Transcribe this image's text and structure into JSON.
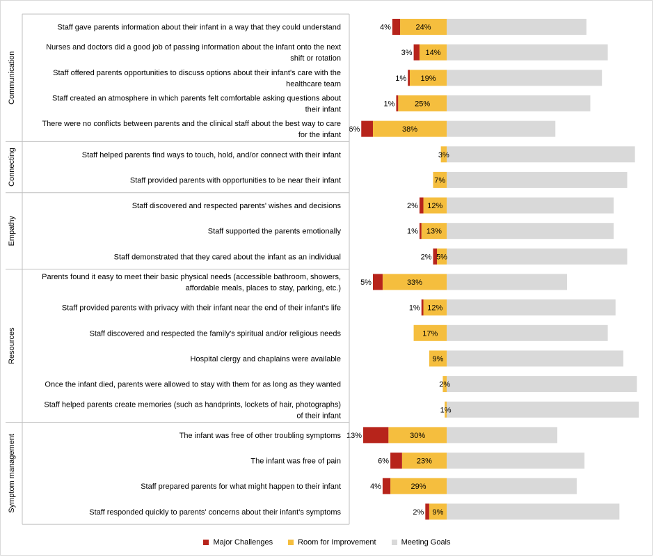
{
  "colors": {
    "major": "#b7241b",
    "room": "#f5be3e",
    "meeting": "#d9d9d9",
    "grid": "#bfbfbf"
  },
  "legend": {
    "major": "Major Challenges",
    "room": "Room for Improvement",
    "meeting": "Meeting Goals"
  },
  "chart_data": {
    "type": "bar",
    "orientation": "horizontal-diverging-stacked",
    "legend_position": "bottom",
    "grid": false,
    "groups": [
      {
        "name": "Communication",
        "items": [
          {
            "label": [
              "Staff gave parents information about their infant in a way that they could understand"
            ],
            "major": 4,
            "room": 24,
            "meeting": 72
          },
          {
            "label": [
              "Nurses and doctors did a good job of passing information about the infant onto the next",
              "shift or rotation"
            ],
            "major": 3,
            "room": 14,
            "meeting": 83
          },
          {
            "label": [
              "Staff offered parents opportunities to discuss options about their infant's care with the",
              "healthcare team"
            ],
            "major": 1,
            "room": 19,
            "meeting": 80
          },
          {
            "label": [
              "Staff created an atmosphere in which parents felt comfortable asking questions about",
              "their infant"
            ],
            "major": 1,
            "room": 25,
            "meeting": 74
          },
          {
            "label": [
              "There were no conflicts between parents and the clinical staff about the best way to care",
              "for the infant"
            ],
            "major": 6,
            "room": 38,
            "meeting": 56
          }
        ]
      },
      {
        "name": "Connecting",
        "items": [
          {
            "label": [
              "Staff helped parents find ways to touch, hold, and/or connect with their infant"
            ],
            "major": 0,
            "room": 3,
            "meeting": 97
          },
          {
            "label": [
              "Staff provided parents with opportunities to be near their infant"
            ],
            "major": 0,
            "room": 7,
            "meeting": 93
          }
        ]
      },
      {
        "name": "Empathy",
        "items": [
          {
            "label": [
              "Staff discovered and respected parents' wishes and decisions"
            ],
            "major": 2,
            "room": 12,
            "meeting": 86
          },
          {
            "label": [
              "Staff supported the parents emotionally"
            ],
            "major": 1,
            "room": 13,
            "meeting": 86
          },
          {
            "label": [
              "Staff demonstrated that they cared about the infant as an individual"
            ],
            "major": 2,
            "room": 5,
            "meeting": 93
          }
        ]
      },
      {
        "name": "Resources",
        "items": [
          {
            "label": [
              "Parents found it easy to meet their basic physical needs (accessible bathroom, showers,",
              "affordable meals, places to stay, parking, etc.)"
            ],
            "major": 5,
            "room": 33,
            "meeting": 62
          },
          {
            "label": [
              "Staff provided parents with privacy with their infant near the end of their infant's life"
            ],
            "major": 1,
            "room": 12,
            "meeting": 87
          },
          {
            "label": [
              "Staff discovered and respected the family's spiritual and/or religious needs"
            ],
            "major": 0,
            "room": 17,
            "meeting": 83
          },
          {
            "label": [
              "Hospital clergy and chaplains were available"
            ],
            "major": 0,
            "room": 9,
            "meeting": 91
          },
          {
            "label": [
              "Once the infant died, parents were allowed to stay with them for as long as they wanted"
            ],
            "major": 0,
            "room": 2,
            "meeting": 98
          },
          {
            "label": [
              "Staff helped parents create memories (such as handprints, lockets of hair, photographs)",
              "of their infant"
            ],
            "major": 0,
            "room": 1,
            "meeting": 99
          }
        ]
      },
      {
        "name": "Symptom management",
        "items": [
          {
            "label": [
              "The infant was free of other troubling symptoms"
            ],
            "major": 13,
            "room": 30,
            "meeting": 57
          },
          {
            "label": [
              "The infant was free of pain"
            ],
            "major": 6,
            "room": 23,
            "meeting": 71
          },
          {
            "label": [
              "Staff prepared parents for what might happen to their infant"
            ],
            "major": 4,
            "room": 29,
            "meeting": 67
          },
          {
            "label": [
              "Staff responded quickly to parents' concerns about their infant's symptoms"
            ],
            "major": 2,
            "room": 9,
            "meeting": 89
          }
        ]
      }
    ]
  }
}
